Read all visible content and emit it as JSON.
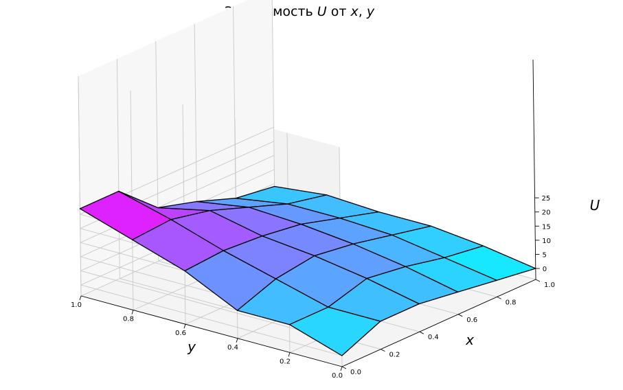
{
  "chart_data": {
    "type": "surface",
    "title_prefix": "Зависимость ",
    "title_u": "U",
    "title_middle": " от ",
    "title_x": "x",
    "title_comma": ", ",
    "title_y": "y",
    "xlabel": "x",
    "ylabel": "y",
    "zlabel": "U",
    "xlim": [
      0,
      1
    ],
    "ylim": [
      0,
      1
    ],
    "zlim": [
      0,
      28
    ],
    "x_ticks": [
      "0.0",
      "0.2",
      "0.4",
      "0.6",
      "0.8",
      "1.0"
    ],
    "y_ticks": [
      "0.0",
      "0.2",
      "0.4",
      "0.6",
      "0.8",
      "1.0"
    ],
    "z_ticks": [
      "0",
      "5",
      "10",
      "15",
      "20",
      "25"
    ],
    "colormap": "cool",
    "colormap_start": "#00ffff",
    "colormap_end": "#ff00ff",
    "grid": true,
    "x": [
      0,
      0.2,
      0.4,
      0.6,
      0.8,
      1.0
    ],
    "y": [
      0,
      0.2,
      0.4,
      0.6,
      0.8,
      1.0
    ],
    "z": [
      [
        0,
        6,
        6,
        15,
        21,
        27
      ],
      [
        6,
        6,
        11,
        16,
        22,
        27
      ],
      [
        6,
        10,
        13,
        15,
        19,
        15
      ],
      [
        4,
        8,
        11,
        13,
        14,
        11
      ],
      [
        2,
        5,
        8,
        9,
        9,
        6
      ],
      [
        0,
        3,
        5,
        5,
        6,
        4
      ]
    ]
  }
}
